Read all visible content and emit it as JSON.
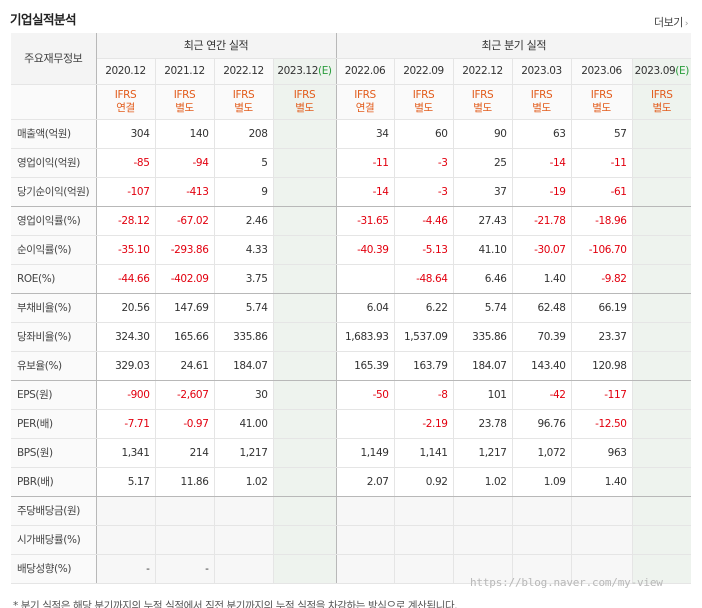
{
  "header": {
    "title": "기업실적분석",
    "more_label": "더보기",
    "more_icon": "chevron-right-icon"
  },
  "table": {
    "label_header": "주요재무정보",
    "annual_group": "최근 연간 실적",
    "quarter_group": "최근 분기 실적",
    "estimate_mark": "(E)",
    "annual_periods": [
      {
        "period": "2020.12",
        "type": "IFRS",
        "basis": "연결",
        "est": false
      },
      {
        "period": "2021.12",
        "type": "IFRS",
        "basis": "별도",
        "est": false
      },
      {
        "period": "2022.12",
        "type": "IFRS",
        "basis": "별도",
        "est": false
      },
      {
        "period": "2023.12",
        "type": "IFRS",
        "basis": "별도",
        "est": true
      }
    ],
    "quarter_periods": [
      {
        "period": "2022.06",
        "type": "IFRS",
        "basis": "연결",
        "est": false
      },
      {
        "period": "2022.09",
        "type": "IFRS",
        "basis": "별도",
        "est": false
      },
      {
        "period": "2022.12",
        "type": "IFRS",
        "basis": "별도",
        "est": false
      },
      {
        "period": "2023.03",
        "type": "IFRS",
        "basis": "별도",
        "est": false
      },
      {
        "period": "2023.06",
        "type": "IFRS",
        "basis": "별도",
        "est": false
      },
      {
        "period": "2023.09",
        "type": "IFRS",
        "basis": "별도",
        "est": true
      }
    ],
    "rows": [
      {
        "label": "매출액(억원)",
        "annual": [
          "304",
          "140",
          "208",
          ""
        ],
        "quarter": [
          "34",
          "60",
          "90",
          "63",
          "57",
          ""
        ]
      },
      {
        "label": "영업이익(억원)",
        "annual": [
          "-85",
          "-94",
          "5",
          ""
        ],
        "quarter": [
          "-11",
          "-3",
          "25",
          "-14",
          "-11",
          ""
        ]
      },
      {
        "label": "당기순이익(억원)",
        "annual": [
          "-107",
          "-413",
          "9",
          ""
        ],
        "quarter": [
          "-14",
          "-3",
          "37",
          "-19",
          "-61",
          ""
        ],
        "group_end": true
      },
      {
        "label": "영업이익률(%)",
        "annual": [
          "-28.12",
          "-67.02",
          "2.46",
          ""
        ],
        "quarter": [
          "-31.65",
          "-4.46",
          "27.43",
          "-21.78",
          "-18.96",
          ""
        ]
      },
      {
        "label": "순이익률(%)",
        "annual": [
          "-35.10",
          "-293.86",
          "4.33",
          ""
        ],
        "quarter": [
          "-40.39",
          "-5.13",
          "41.10",
          "-30.07",
          "-106.70",
          ""
        ]
      },
      {
        "label": "ROE(%)",
        "annual": [
          "-44.66",
          "-402.09",
          "3.75",
          ""
        ],
        "quarter": [
          "",
          "-48.64",
          "6.46",
          "1.40",
          "-9.82",
          ""
        ],
        "group_end": true
      },
      {
        "label": "부채비율(%)",
        "annual": [
          "20.56",
          "147.69",
          "5.74",
          ""
        ],
        "quarter": [
          "6.04",
          "6.22",
          "5.74",
          "62.48",
          "66.19",
          ""
        ]
      },
      {
        "label": "당좌비율(%)",
        "annual": [
          "324.30",
          "165.66",
          "335.86",
          ""
        ],
        "quarter": [
          "1,683.93",
          "1,537.09",
          "335.86",
          "70.39",
          "23.37",
          ""
        ]
      },
      {
        "label": "유보율(%)",
        "annual": [
          "329.03",
          "24.61",
          "184.07",
          ""
        ],
        "quarter": [
          "165.39",
          "163.79",
          "184.07",
          "143.40",
          "120.98",
          ""
        ],
        "group_end": true
      },
      {
        "label": "EPS(원)",
        "annual": [
          "-900",
          "-2,607",
          "30",
          ""
        ],
        "quarter": [
          "-50",
          "-8",
          "101",
          "-42",
          "-117",
          ""
        ]
      },
      {
        "label": "PER(배)",
        "annual": [
          "-7.71",
          "-0.97",
          "41.00",
          ""
        ],
        "quarter": [
          "",
          "-2.19",
          "23.78",
          "96.76",
          "-12.50",
          ""
        ]
      },
      {
        "label": "BPS(원)",
        "annual": [
          "1,341",
          "214",
          "1,217",
          ""
        ],
        "quarter": [
          "1,149",
          "1,141",
          "1,217",
          "1,072",
          "963",
          ""
        ]
      },
      {
        "label": "PBR(배)",
        "annual": [
          "5.17",
          "11.86",
          "1.02",
          ""
        ],
        "quarter": [
          "2.07",
          "0.92",
          "1.02",
          "1.09",
          "1.40",
          ""
        ],
        "group_end": true
      },
      {
        "label": "주당배당금(원)",
        "annual": [
          "",
          "",
          "",
          ""
        ],
        "quarter": [
          "",
          "",
          "",
          "",
          "",
          ""
        ],
        "empty": true
      },
      {
        "label": "시가배당률(%)",
        "annual": [
          "",
          "",
          "",
          ""
        ],
        "quarter": [
          "",
          "",
          "",
          "",
          "",
          ""
        ],
        "empty": true
      },
      {
        "label": "배당성향(%)",
        "annual": [
          "-",
          "-",
          "",
          ""
        ],
        "quarter": [
          "",
          "",
          "",
          "",
          "",
          ""
        ],
        "empty": true
      }
    ]
  },
  "watermark": "https://blog.naver.com/my-view",
  "footnote": "* 분기 실적은 해당 분기까지의 누적 실적에서 직전 분기까지의 누적 실적을 차감하는 방식으로 계산됩니다."
}
